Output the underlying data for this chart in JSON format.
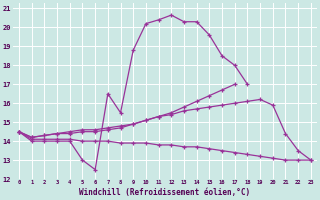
{
  "xlabel": "Windchill (Refroidissement éolien,°C)",
  "bg_color": "#cce8e4",
  "line_color": "#993399",
  "grid_color": "#ffffff",
  "xlim": [
    -0.5,
    23.5
  ],
  "ylim": [
    12,
    21.3
  ],
  "xticks": [
    0,
    1,
    2,
    3,
    4,
    5,
    6,
    7,
    8,
    9,
    10,
    11,
    12,
    13,
    14,
    15,
    16,
    17,
    18,
    19,
    20,
    21,
    22,
    23
  ],
  "yticks": [
    12,
    13,
    14,
    15,
    16,
    17,
    18,
    19,
    20,
    21
  ],
  "series": [
    {
      "x": [
        0,
        1,
        2,
        3,
        4,
        5,
        6,
        7,
        8,
        9,
        10,
        11,
        12,
        13,
        14,
        15,
        16,
        17,
        18
      ],
      "y": [
        14.5,
        14.0,
        14.0,
        14.0,
        14.0,
        13.0,
        12.5,
        16.5,
        15.5,
        18.8,
        20.2,
        20.4,
        20.65,
        20.3,
        20.3,
        19.6,
        18.5,
        18.0,
        17.0
      ]
    },
    {
      "x": [
        0,
        1,
        2,
        3,
        4,
        5,
        6,
        7,
        8,
        9,
        10,
        11,
        12,
        13,
        14,
        15,
        16,
        17
      ],
      "y": [
        14.5,
        14.2,
        14.3,
        14.4,
        14.4,
        14.5,
        14.5,
        14.6,
        14.7,
        14.9,
        15.1,
        15.3,
        15.5,
        15.8,
        16.1,
        16.4,
        16.7,
        17.0
      ]
    },
    {
      "x": [
        0,
        1,
        2,
        3,
        4,
        5,
        6,
        7,
        8,
        9,
        10,
        11,
        12,
        13,
        14,
        15,
        16,
        17,
        18,
        19,
        20,
        21,
        22,
        23
      ],
      "y": [
        14.5,
        14.2,
        14.3,
        14.4,
        14.5,
        14.6,
        14.6,
        14.7,
        14.8,
        14.9,
        15.1,
        15.3,
        15.4,
        15.6,
        15.7,
        15.8,
        15.9,
        16.0,
        16.1,
        16.2,
        15.9,
        14.4,
        13.5,
        13.0
      ]
    },
    {
      "x": [
        0,
        1,
        2,
        3,
        4,
        5,
        6,
        7,
        8,
        9,
        10,
        11,
        12,
        13,
        14,
        15,
        16,
        17,
        18,
        19,
        20,
        21,
        22,
        23
      ],
      "y": [
        14.5,
        14.1,
        14.1,
        14.1,
        14.1,
        14.0,
        14.0,
        14.0,
        13.9,
        13.9,
        13.9,
        13.8,
        13.8,
        13.7,
        13.7,
        13.6,
        13.5,
        13.4,
        13.3,
        13.2,
        13.1,
        13.0,
        13.0,
        13.0
      ]
    }
  ]
}
